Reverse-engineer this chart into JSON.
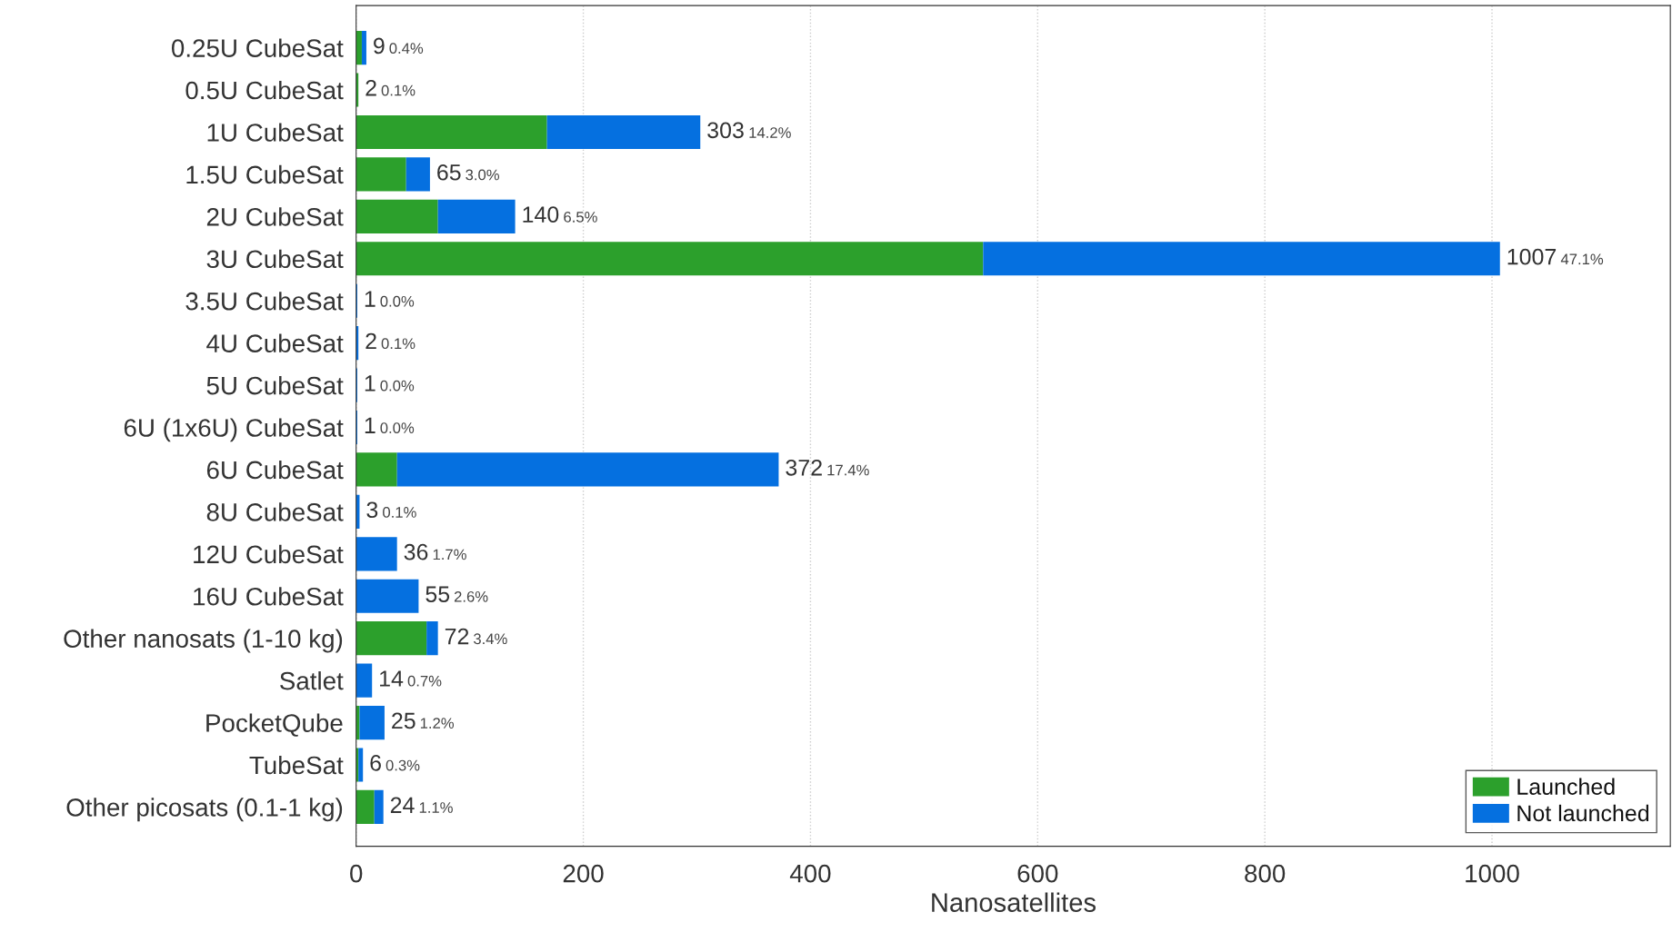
{
  "chart_data": {
    "type": "bar",
    "orientation": "horizontal",
    "stacked": true,
    "categories": [
      "0.25U CubeSat",
      "0.5U CubeSat",
      "1U CubeSat",
      "1.5U CubeSat",
      "2U CubeSat",
      "3U CubeSat",
      "3.5U CubeSat",
      "4U CubeSat",
      "5U CubeSat",
      "6U (1x6U) CubeSat",
      "6U CubeSat",
      "8U CubeSat",
      "12U CubeSat",
      "16U CubeSat",
      "Other nanosats (1-10 kg)",
      "Satlet",
      "PocketQube",
      "TubeSat",
      "Other picosats (0.1-1 kg)"
    ],
    "series": [
      {
        "name": "Launched",
        "color": "#2ca02c",
        "values": [
          5,
          2,
          168,
          44,
          72,
          552,
          0,
          0,
          0,
          0,
          36,
          0,
          0,
          0,
          62,
          0,
          3,
          2,
          16
        ]
      },
      {
        "name": "Not launched",
        "color": "#0570e0",
        "values": [
          4,
          0,
          135,
          21,
          68,
          455,
          1,
          2,
          1,
          1,
          336,
          3,
          36,
          55,
          10,
          14,
          22,
          4,
          8
        ]
      }
    ],
    "totals": [
      "9",
      "2",
      "303",
      "65",
      "140",
      "1007",
      "1",
      "2",
      "1",
      "1",
      "372",
      "3",
      "36",
      "55",
      "72",
      "14",
      "25",
      "6",
      "24"
    ],
    "annotations": [
      "0.4%",
      "0.1%",
      "14.2%",
      "3.0%",
      "6.5%",
      "47.1%",
      "0.0%",
      "0.1%",
      "0.0%",
      "0.0%",
      "17.4%",
      "0.1%",
      "1.7%",
      "2.6%",
      "3.4%",
      "0.7%",
      "1.2%",
      "0.3%",
      "1.1%"
    ],
    "xlabel": "Nanosatellites",
    "xlim": [
      0,
      1157
    ],
    "xticks": [
      0,
      200,
      400,
      600,
      800,
      1000
    ],
    "grid": "x",
    "legend": "bottom right"
  }
}
